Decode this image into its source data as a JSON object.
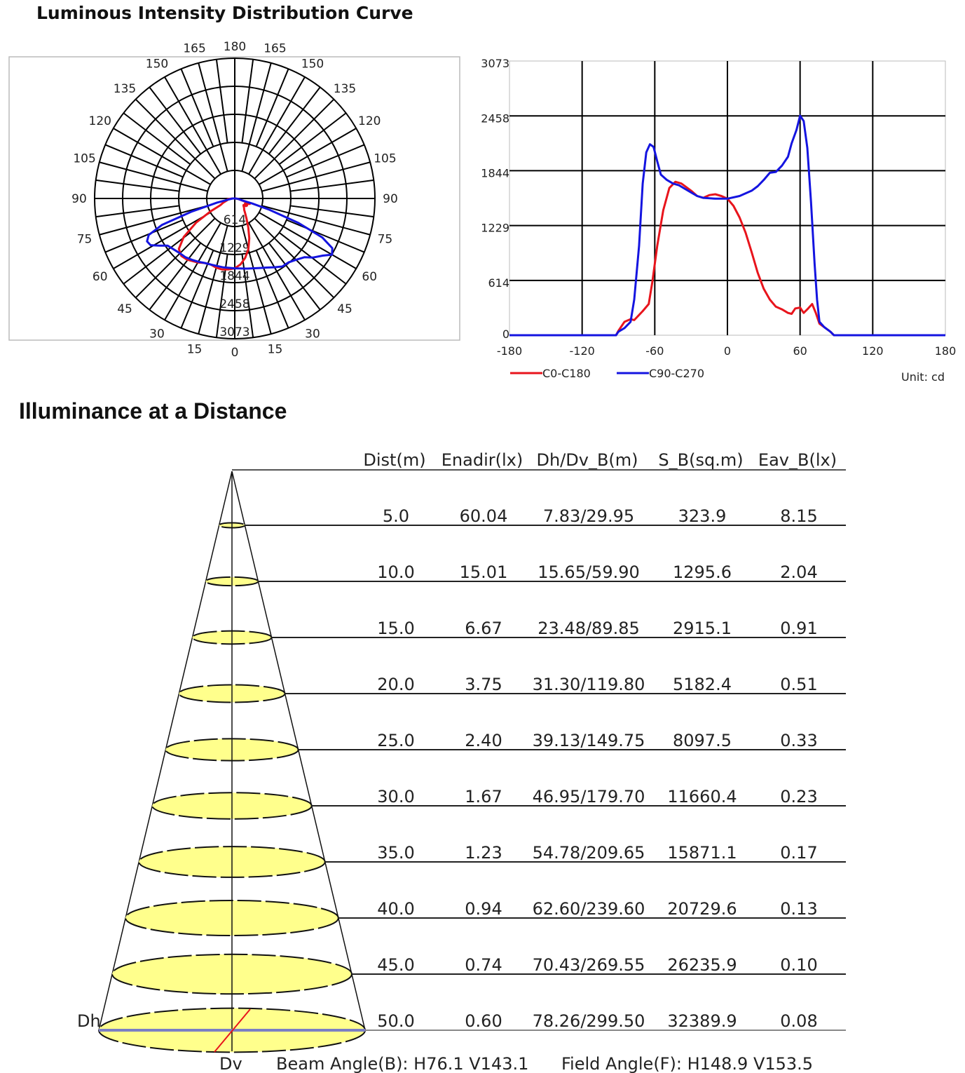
{
  "titles": {
    "luminous": "Luminous Intensity Distribution Curve",
    "illuminance": "Illuminance at a Distance"
  },
  "colors": {
    "c0": "#e8141c",
    "c90": "#1414e0",
    "ellipse": "#ffff8c",
    "dh_line": "#7b7fc4"
  },
  "chart_data": [
    {
      "type": "polar",
      "title": "Luminous Intensity Distribution Curve (polar)",
      "angle_labels_left": [
        "165",
        "150",
        "135",
        "120",
        "105",
        "90",
        "75",
        "60",
        "45",
        "30",
        "15"
      ],
      "angle_labels_right": [
        "165",
        "150",
        "135",
        "120",
        "105",
        "90",
        "75",
        "60",
        "45",
        "30",
        "15"
      ],
      "angle_label_top": "180",
      "angle_label_bottom": "0",
      "ring_labels": [
        "614",
        "1229",
        "1844",
        "2458",
        "3073"
      ],
      "rmax": 3073,
      "series_from": "line chart series"
    },
    {
      "type": "line",
      "xlabel": "",
      "ylabel": "",
      "unit_label": "Unit: cd",
      "xlim": [
        -180,
        180
      ],
      "ylim": [
        0,
        3073
      ],
      "xticks": [
        "-180",
        "-120",
        "-60",
        "0",
        "60",
        "120",
        "180"
      ],
      "yticks": [
        "0",
        "614",
        "1229",
        "1844",
        "2458",
        "3073"
      ],
      "grid": true,
      "legend_position": "bottom-left",
      "series": [
        {
          "name": "C0-C180",
          "color": "#e8141c",
          "x": [
            -180,
            -92,
            -90,
            -85,
            -80,
            -77,
            -70,
            -65,
            -62,
            -58,
            -53,
            -48,
            -43,
            -38,
            -30,
            -25,
            -20,
            -15,
            -10,
            -5,
            0,
            5,
            10,
            15,
            20,
            25,
            30,
            35,
            40,
            45,
            50,
            53,
            56,
            60,
            63,
            66,
            70,
            73,
            76,
            80,
            85,
            88,
            180
          ],
          "y": [
            0,
            0,
            50,
            150,
            180,
            170,
            270,
            350,
            600,
            1000,
            1400,
            1650,
            1720,
            1700,
            1620,
            1560,
            1540,
            1570,
            1580,
            1560,
            1530,
            1450,
            1320,
            1150,
            930,
            700,
            520,
            400,
            320,
            290,
            250,
            240,
            300,
            310,
            250,
            290,
            350,
            250,
            130,
            90,
            40,
            0,
            0
          ]
        },
        {
          "name": "C90-C270",
          "color": "#1414e0",
          "x": [
            -180,
            -92,
            -90,
            -85,
            -80,
            -77,
            -73,
            -70,
            -67,
            -64,
            -61,
            -58,
            -55,
            -50,
            -45,
            -40,
            -35,
            -30,
            -25,
            -20,
            -10,
            0,
            10,
            20,
            25,
            30,
            35,
            40,
            45,
            50,
            53,
            57,
            60,
            63,
            66,
            69,
            72,
            74,
            76,
            80,
            85,
            88,
            180
          ],
          "y": [
            0,
            0,
            40,
            80,
            150,
            400,
            1000,
            1700,
            2050,
            2140,
            2110,
            1950,
            1800,
            1740,
            1700,
            1680,
            1640,
            1600,
            1560,
            1540,
            1530,
            1530,
            1560,
            1620,
            1670,
            1740,
            1820,
            1830,
            1900,
            2000,
            2150,
            2300,
            2460,
            2400,
            2100,
            1500,
            800,
            400,
            150,
            90,
            40,
            0,
            0
          ]
        }
      ]
    }
  ],
  "illuminance": {
    "headers": [
      "Dist(m)",
      "Enadir(lx)",
      "Dh/Dv_B(m)",
      "S_B(sq.m)",
      "Eav_B(lx)"
    ],
    "rows": [
      [
        "5.0",
        "60.04",
        "7.83/29.95",
        "323.9",
        "8.15"
      ],
      [
        "10.0",
        "15.01",
        "15.65/59.90",
        "1295.6",
        "2.04"
      ],
      [
        "15.0",
        "6.67",
        "23.48/89.85",
        "2915.1",
        "0.91"
      ],
      [
        "20.0",
        "3.75",
        "31.30/119.80",
        "5182.4",
        "0.51"
      ],
      [
        "25.0",
        "2.40",
        "39.13/149.75",
        "8097.5",
        "0.33"
      ],
      [
        "30.0",
        "1.67",
        "46.95/179.70",
        "11660.4",
        "0.23"
      ],
      [
        "35.0",
        "1.23",
        "54.78/209.65",
        "15871.1",
        "0.17"
      ],
      [
        "40.0",
        "0.94",
        "62.60/239.60",
        "20729.6",
        "0.13"
      ],
      [
        "45.0",
        "0.74",
        "70.43/269.55",
        "26235.9",
        "0.10"
      ],
      [
        "50.0",
        "0.60",
        "78.26/299.50",
        "32389.9",
        "0.08"
      ]
    ],
    "dh_label": "Dh",
    "dv_label": "Dv",
    "beam_angle": "Beam Angle(B): H76.1 V143.1",
    "field_angle": "Field Angle(F): H148.9 V153.5"
  }
}
